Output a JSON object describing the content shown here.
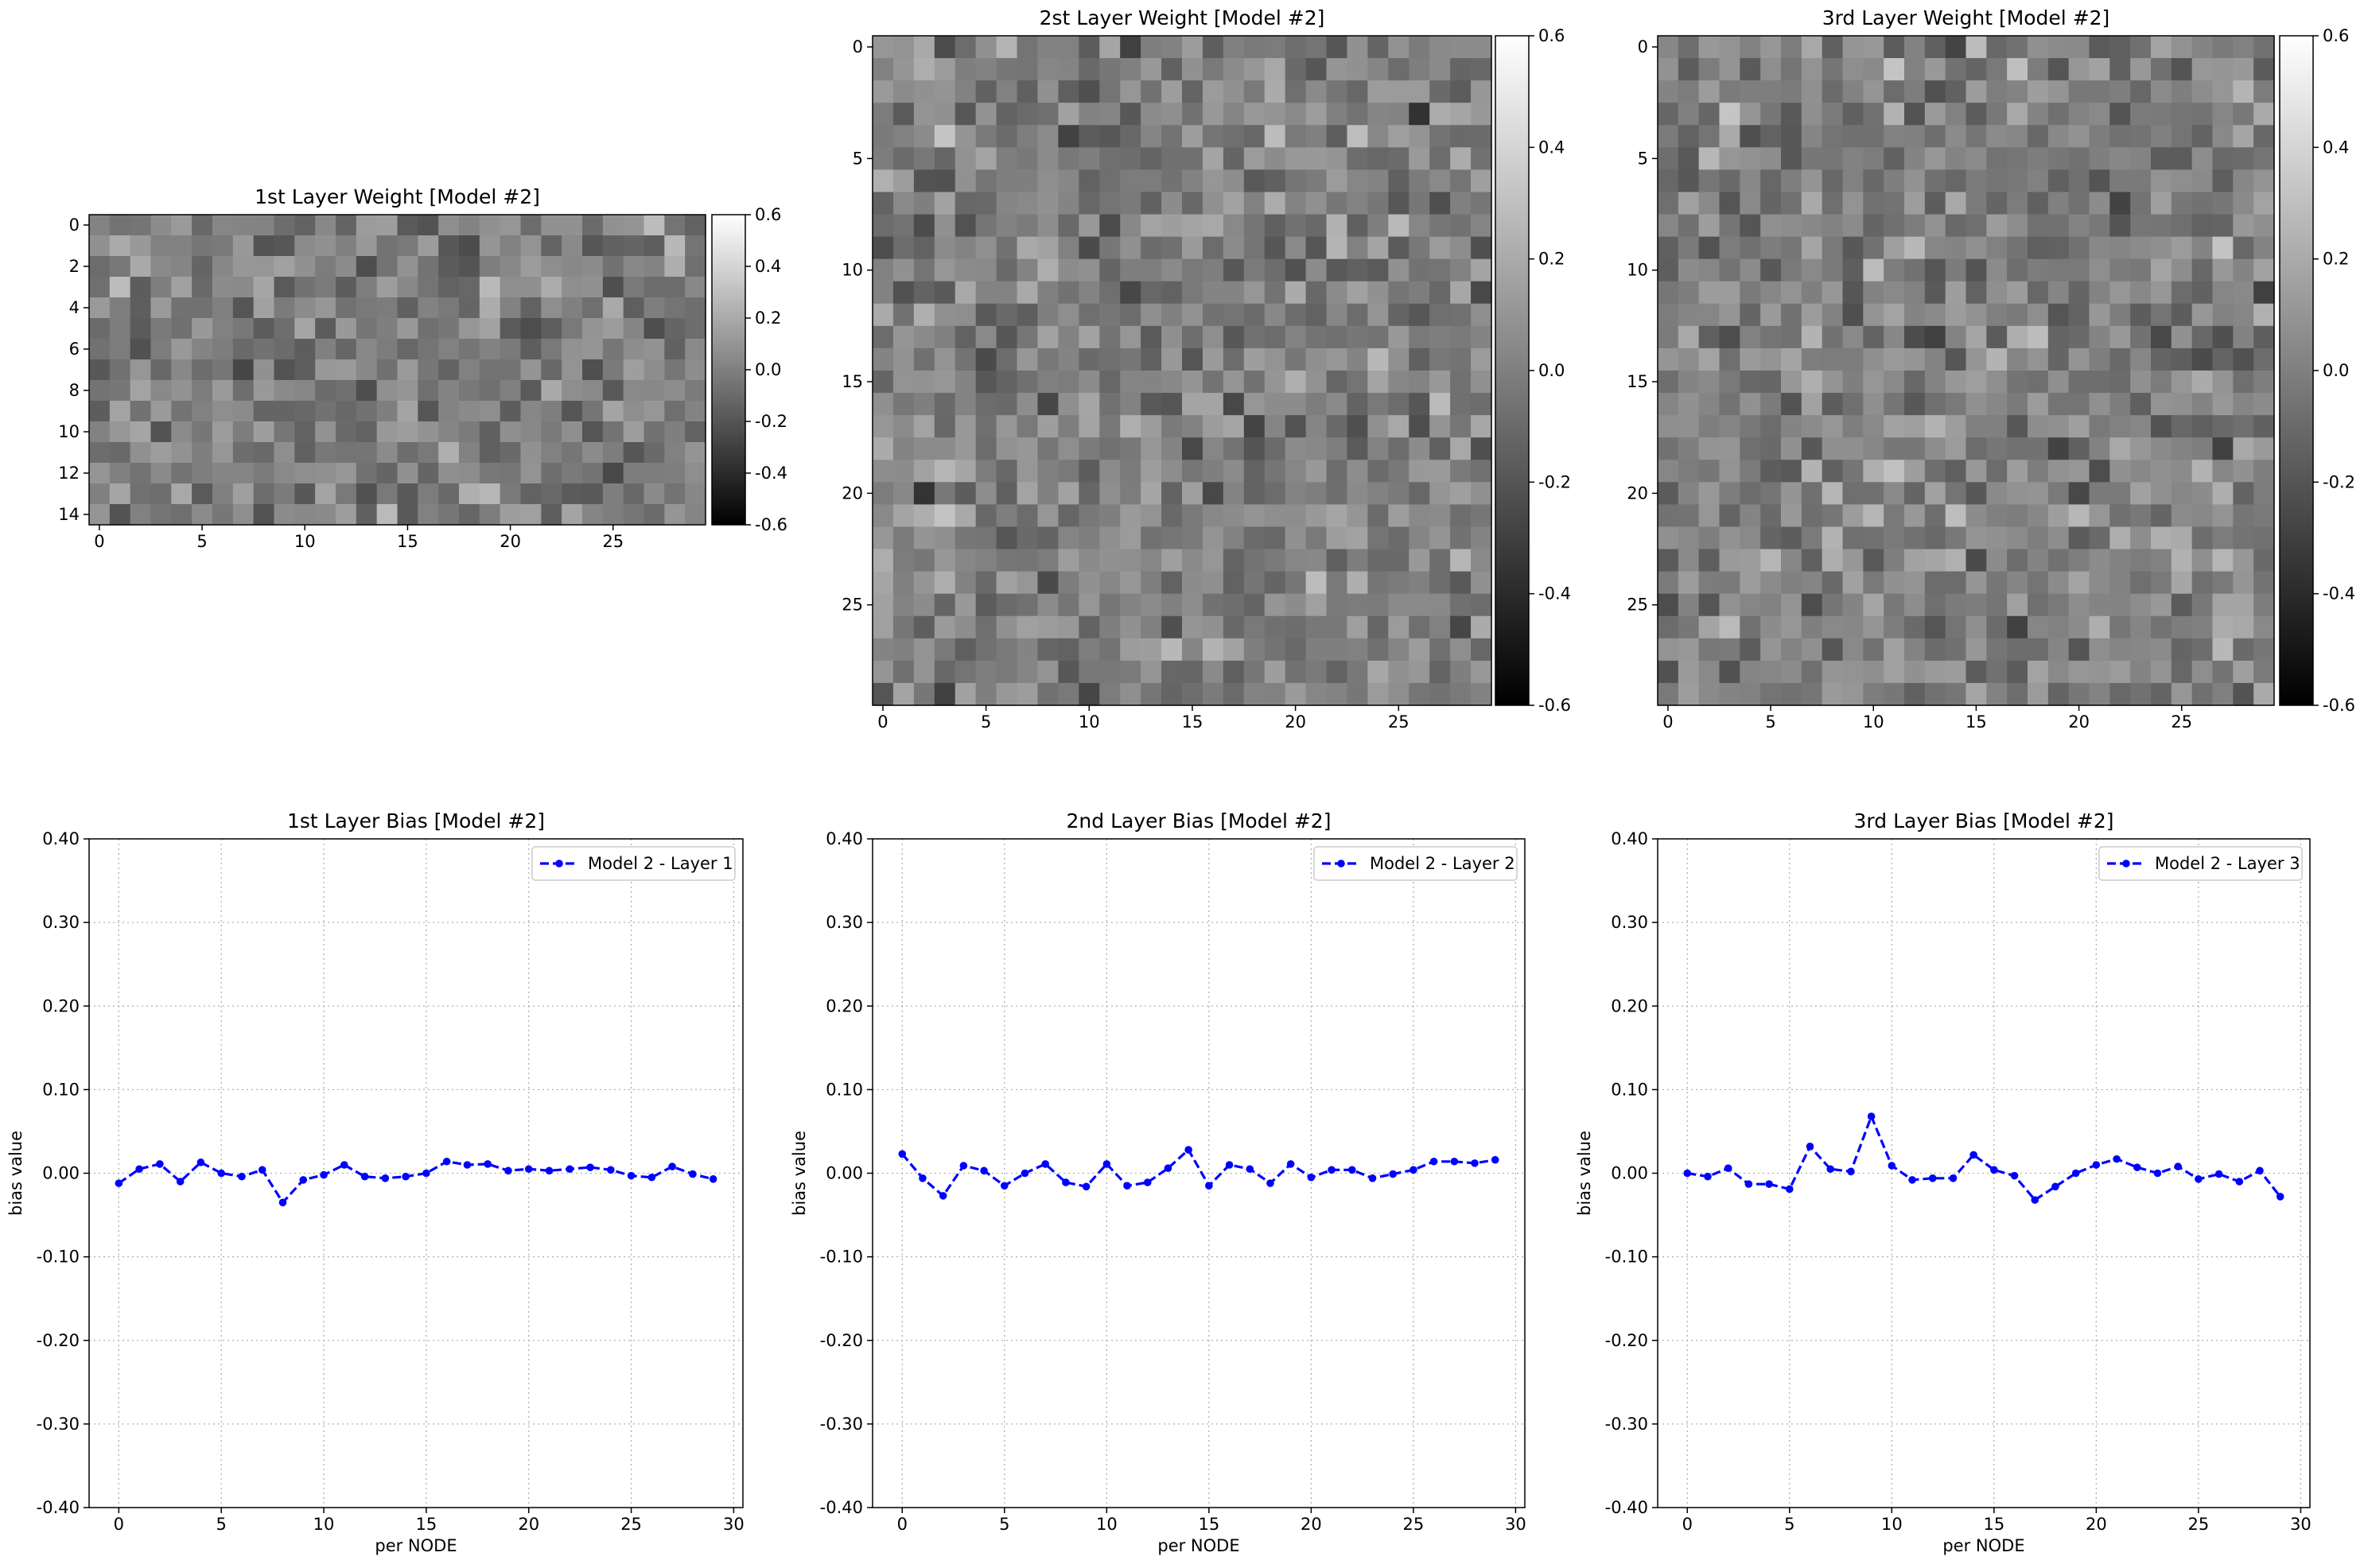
{
  "colors": {
    "line": "#0000ff",
    "grid": "#b0b0b0",
    "axis": "#000000"
  },
  "chart_data": [
    {
      "type": "heatmap",
      "colormap": "gray",
      "title": "1st Layer Weight [Model #2]",
      "rows": 15,
      "cols": 30,
      "vmin": -0.6,
      "vmax": 0.6,
      "x_ticks": [
        "0",
        "5",
        "10",
        "15",
        "20",
        "25"
      ],
      "y_ticks": [
        "0",
        "2",
        "4",
        "6",
        "8",
        "10",
        "12",
        "14"
      ],
      "colorbar_ticks": [
        "0.6",
        "0.4",
        "0.2",
        "0.0",
        "-0.2",
        "-0.4",
        "-0.6"
      ]
    },
    {
      "type": "heatmap",
      "colormap": "gray",
      "title": "2st Layer Weight [Model #2]",
      "rows": 30,
      "cols": 30,
      "vmin": -0.6,
      "vmax": 0.6,
      "x_ticks": [
        "0",
        "5",
        "10",
        "15",
        "20",
        "25"
      ],
      "y_ticks": [
        "0",
        "5",
        "10",
        "15",
        "20",
        "25"
      ],
      "colorbar_ticks": [
        "0.6",
        "0.4",
        "0.2",
        "0.0",
        "-0.2",
        "-0.4",
        "-0.6"
      ]
    },
    {
      "type": "heatmap",
      "colormap": "gray",
      "title": "3rd Layer Weight [Model #2]",
      "rows": 30,
      "cols": 30,
      "vmin": -0.6,
      "vmax": 0.6,
      "x_ticks": [
        "0",
        "5",
        "10",
        "15",
        "20",
        "25"
      ],
      "y_ticks": [
        "0",
        "5",
        "10",
        "15",
        "20",
        "25"
      ],
      "colorbar_ticks": [
        "0.6",
        "0.4",
        "0.2",
        "0.0",
        "-0.2",
        "-0.4",
        "-0.6"
      ]
    },
    {
      "type": "line",
      "title": "1st Layer Bias [Model #2]",
      "xlabel": "per NODE",
      "ylabel": "bias value",
      "xlim": [
        -1.45,
        30.45
      ],
      "ylim": [
        -0.4,
        0.4
      ],
      "grid": true,
      "legend_position": "top-right",
      "x_ticks": [
        "0",
        "5",
        "10",
        "15",
        "20",
        "25",
        "30"
      ],
      "y_ticks": [
        "0.40",
        "0.30",
        "0.20",
        "0.10",
        "0.00",
        "-0.10",
        "-0.20",
        "-0.30",
        "-0.40"
      ],
      "series": [
        {
          "name": "Model 2 - Layer 1",
          "style": "dashed-dot-markers",
          "x": [
            0,
            1,
            2,
            3,
            4,
            5,
            6,
            7,
            8,
            9,
            10,
            11,
            12,
            13,
            14,
            15,
            16,
            17,
            18,
            19,
            20,
            21,
            22,
            23,
            24,
            25,
            26,
            27,
            28,
            29
          ],
          "y": [
            -0.012,
            0.005,
            0.011,
            -0.01,
            0.013,
            0.0,
            -0.004,
            0.004,
            -0.035,
            -0.008,
            -0.002,
            0.01,
            -0.004,
            -0.006,
            -0.004,
            0.0,
            0.014,
            0.01,
            0.011,
            0.003,
            0.005,
            0.003,
            0.005,
            0.007,
            0.004,
            -0.003,
            -0.005,
            0.008,
            -0.001,
            -0.007
          ]
        }
      ]
    },
    {
      "type": "line",
      "title": "2nd Layer Bias [Model #2]",
      "xlabel": "per NODE",
      "ylabel": "bias value",
      "xlim": [
        -1.45,
        30.45
      ],
      "ylim": [
        -0.4,
        0.4
      ],
      "grid": true,
      "legend_position": "top-right",
      "x_ticks": [
        "0",
        "5",
        "10",
        "15",
        "20",
        "25",
        "30"
      ],
      "y_ticks": [
        "0.40",
        "0.30",
        "0.20",
        "0.10",
        "0.00",
        "-0.10",
        "-0.20",
        "-0.30",
        "-0.40"
      ],
      "series": [
        {
          "name": "Model 2 - Layer 2",
          "style": "dashed-dot-markers",
          "x": [
            0,
            1,
            2,
            3,
            4,
            5,
            6,
            7,
            8,
            9,
            10,
            11,
            12,
            13,
            14,
            15,
            16,
            17,
            18,
            19,
            20,
            21,
            22,
            23,
            24,
            25,
            26,
            27,
            28,
            29
          ],
          "y": [
            0.023,
            -0.006,
            -0.027,
            0.009,
            0.003,
            -0.015,
            0.0,
            0.011,
            -0.011,
            -0.016,
            0.011,
            -0.015,
            -0.011,
            0.006,
            0.028,
            -0.015,
            0.01,
            0.005,
            -0.012,
            0.011,
            -0.005,
            0.004,
            0.004,
            -0.006,
            -0.001,
            0.004,
            0.014,
            0.014,
            0.012,
            0.016
          ]
        }
      ]
    },
    {
      "type": "line",
      "title": "3rd Layer Bias [Model #2]",
      "xlabel": "per NODE",
      "ylabel": "bias value",
      "xlim": [
        -1.45,
        30.45
      ],
      "ylim": [
        -0.4,
        0.4
      ],
      "grid": true,
      "legend_position": "top-right",
      "x_ticks": [
        "0",
        "5",
        "10",
        "15",
        "20",
        "25",
        "30"
      ],
      "y_ticks": [
        "0.40",
        "0.30",
        "0.20",
        "0.10",
        "0.00",
        "-0.10",
        "-0.20",
        "-0.30",
        "-0.40"
      ],
      "series": [
        {
          "name": "Model 2 - Layer 3",
          "style": "dashed-dot-markers",
          "x": [
            0,
            1,
            2,
            3,
            4,
            5,
            6,
            7,
            8,
            9,
            10,
            11,
            12,
            13,
            14,
            15,
            16,
            17,
            18,
            19,
            20,
            21,
            22,
            23,
            24,
            25,
            26,
            27,
            28,
            29
          ],
          "y": [
            0.0,
            -0.004,
            0.006,
            -0.013,
            -0.013,
            -0.019,
            0.032,
            0.005,
            0.002,
            0.068,
            0.009,
            -0.008,
            -0.006,
            -0.006,
            0.022,
            0.004,
            -0.003,
            -0.032,
            -0.016,
            0.0,
            0.01,
            0.017,
            0.007,
            0.0,
            0.008,
            -0.007,
            -0.001,
            -0.01,
            0.003,
            -0.028
          ]
        }
      ]
    }
  ]
}
